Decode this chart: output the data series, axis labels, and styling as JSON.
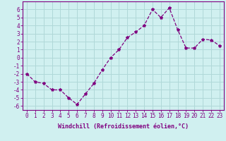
{
  "x": [
    0,
    1,
    2,
    3,
    4,
    5,
    6,
    7,
    8,
    9,
    10,
    11,
    12,
    13,
    14,
    15,
    16,
    17,
    18,
    19,
    20,
    21,
    22,
    23
  ],
  "y": [
    -2,
    -3,
    -3.2,
    -4,
    -4,
    -5,
    -5.8,
    -4.5,
    -3.2,
    -1.5,
    0,
    1,
    2.5,
    3.2,
    4,
    6,
    5,
    6.2,
    3.5,
    1.2,
    1.2,
    2.3,
    2.2,
    1.5
  ],
  "line_color": "#800080",
  "marker": "*",
  "marker_size": 3,
  "bg_color": "#d0f0f0",
  "grid_color": "#b0d8d8",
  "xlabel": "Windchill (Refroidissement éolien,°C)",
  "xlim_min": -0.5,
  "xlim_max": 23.5,
  "ylim_min": -6.5,
  "ylim_max": 7.0,
  "yticks": [
    -6,
    -5,
    -4,
    -3,
    -2,
    -1,
    0,
    1,
    2,
    3,
    4,
    5,
    6
  ],
  "xtick_labels": [
    "0",
    "1",
    "2",
    "3",
    "4",
    "5",
    "6",
    "7",
    "8",
    "9",
    "10",
    "11",
    "12",
    "13",
    "14",
    "15",
    "16",
    "17",
    "18",
    "19",
    "20",
    "21",
    "22",
    "23"
  ],
  "axis_color": "#800080",
  "tick_color": "#800080",
  "label_color": "#800080",
  "tick_fontsize": 5.5,
  "xlabel_fontsize": 6.0,
  "linewidth": 0.9
}
